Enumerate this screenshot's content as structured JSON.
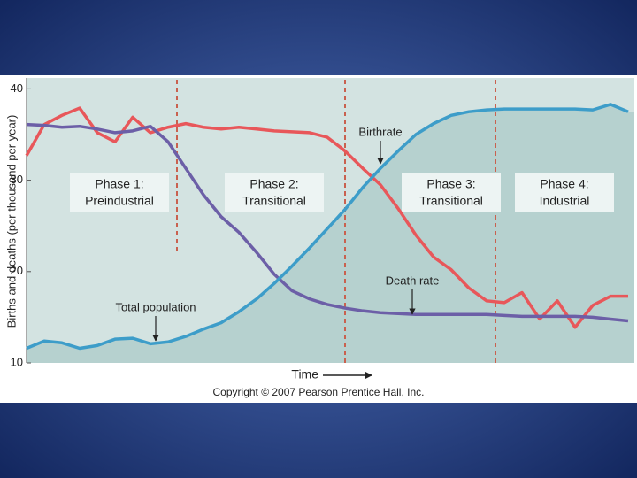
{
  "chart_data": {
    "type": "line",
    "y_label": "Births and deaths (per thousand per year)",
    "x_label": "Time",
    "footnote": "Copyright © 2007 Pearson Prentice Hall, Inc.",
    "ylim": [
      10,
      41.2
    ],
    "yticks": [
      10,
      20,
      30,
      40
    ],
    "phases": [
      [
        "Phase 1:",
        "Preindustrial"
      ],
      [
        "Phase 2:",
        "Transitional"
      ],
      [
        "Phase 3:",
        "Transitional"
      ],
      [
        "Phase 4:",
        "Industrial"
      ]
    ],
    "series": [
      {
        "name": "Birthrate",
        "color": "#e8575a",
        "values": [
          32.7,
          36.1,
          37.1,
          37.9,
          35.2,
          34.2,
          36.9,
          35.2,
          35.8,
          36.2,
          35.8,
          35.6,
          35.8,
          35.6,
          35.4,
          35.3,
          35.2,
          34.7,
          33.2,
          31.3,
          29.5,
          26.9,
          24.0,
          21.6,
          20.2,
          18.2,
          16.8,
          16.6,
          17.7,
          14.8,
          16.8,
          13.9,
          16.3,
          17.3,
          17.3
        ]
      },
      {
        "name": "Death rate",
        "color": "#6c5fa7",
        "values": [
          36.1,
          36.0,
          35.8,
          35.9,
          35.6,
          35.2,
          35.4,
          35.9,
          34.2,
          31.3,
          28.4,
          26.0,
          24.3,
          22.1,
          19.7,
          17.9,
          17.0,
          16.4,
          16.0,
          15.7,
          15.5,
          15.4,
          15.3,
          15.3,
          15.3,
          15.3,
          15.3,
          15.2,
          15.1,
          15.1,
          15.1,
          15.1,
          15.0,
          14.8,
          14.6
        ]
      },
      {
        "name": "Total population",
        "color": "#3d9dc9",
        "values": [
          11.6,
          12.4,
          12.2,
          11.6,
          11.9,
          12.6,
          12.7,
          12.1,
          12.3,
          12.9,
          13.7,
          14.4,
          15.6,
          17.0,
          18.7,
          20.6,
          22.6,
          24.7,
          26.8,
          29.2,
          31.3,
          33.2,
          35.0,
          36.2,
          37.1,
          37.5,
          37.7,
          37.8,
          37.8,
          37.8,
          37.8,
          37.8,
          37.7,
          38.3,
          37.5
        ]
      }
    ]
  }
}
